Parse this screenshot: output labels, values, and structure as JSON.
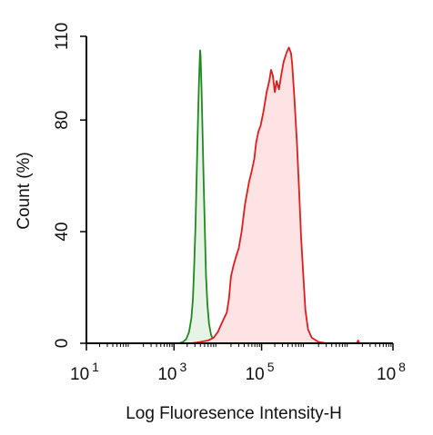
{
  "chart_data": {
    "type": "area",
    "xlabel": "Log Fluoresence Intensity-H",
    "ylabel": "Count  (%)",
    "xscale": "log",
    "xlim": [
      10,
      100000000
    ],
    "ylim": [
      0,
      110
    ],
    "grid": false,
    "legend": "none",
    "x_ticks": [
      {
        "value": 10,
        "base": "10",
        "exp": "1"
      },
      {
        "value": 1000,
        "base": "10",
        "exp": "3"
      },
      {
        "value": 100000,
        "base": "10",
        "exp": "5"
      },
      {
        "value": 100000000,
        "base": "10",
        "exp": "8"
      }
    ],
    "y_ticks": [
      {
        "value": 0,
        "label": "0"
      },
      {
        "value": 40,
        "label": "40"
      },
      {
        "value": 80,
        "label": "80"
      },
      {
        "value": 110,
        "label": "110"
      }
    ],
    "series": [
      {
        "color": "#1e8a1e",
        "fill": "#e6f3e6",
        "points": [
          [
            1300,
            0
          ],
          [
            1600,
            0.5
          ],
          [
            1900,
            1.5
          ],
          [
            2200,
            4
          ],
          [
            2500,
            9
          ],
          [
            2700,
            16
          ],
          [
            2900,
            28
          ],
          [
            3100,
            42
          ],
          [
            3300,
            60
          ],
          [
            3500,
            78
          ],
          [
            3700,
            92
          ],
          [
            3850,
            101
          ],
          [
            3950,
            105
          ],
          [
            4050,
            103
          ],
          [
            4250,
            92
          ],
          [
            4500,
            75
          ],
          [
            4800,
            55
          ],
          [
            5100,
            38
          ],
          [
            5400,
            24
          ],
          [
            5800,
            14
          ],
          [
            6300,
            7
          ],
          [
            7000,
            3
          ],
          [
            8000,
            1
          ],
          [
            9500,
            0
          ]
        ]
      },
      {
        "color": "#e21b1b",
        "fill": "#fde3e3",
        "points": [
          [
            2500,
            0
          ],
          [
            4000,
            0.5
          ],
          [
            6000,
            1
          ],
          [
            8000,
            2
          ],
          [
            10000,
            4
          ],
          [
            13000,
            8
          ],
          [
            16000,
            11
          ],
          [
            18000,
            16
          ],
          [
            20000,
            24
          ],
          [
            23000,
            28
          ],
          [
            26000,
            31
          ],
          [
            30000,
            34
          ],
          [
            35000,
            40
          ],
          [
            42000,
            50
          ],
          [
            52000,
            58
          ],
          [
            60000,
            62
          ],
          [
            68000,
            66
          ],
          [
            75000,
            72
          ],
          [
            85000,
            76
          ],
          [
            95000,
            78
          ],
          [
            110000,
            83
          ],
          [
            130000,
            90
          ],
          [
            150000,
            94
          ],
          [
            165000,
            98
          ],
          [
            180000,
            96
          ],
          [
            200000,
            90
          ],
          [
            220000,
            94
          ],
          [
            250000,
            91
          ],
          [
            280000,
            96
          ],
          [
            320000,
            101
          ],
          [
            370000,
            104
          ],
          [
            420000,
            106
          ],
          [
            470000,
            104
          ],
          [
            500000,
            100
          ],
          [
            560000,
            88
          ],
          [
            640000,
            72
          ],
          [
            720000,
            55
          ],
          [
            800000,
            38
          ],
          [
            900000,
            24
          ],
          [
            1000000,
            12
          ],
          [
            1150000,
            5
          ],
          [
            1400000,
            2
          ],
          [
            2000000,
            0.5
          ],
          [
            3000000,
            0
          ],
          [
            15000000,
            0
          ],
          [
            16000000,
            1
          ],
          [
            17000000,
            0
          ],
          [
            25000000,
            0
          ]
        ]
      }
    ]
  }
}
